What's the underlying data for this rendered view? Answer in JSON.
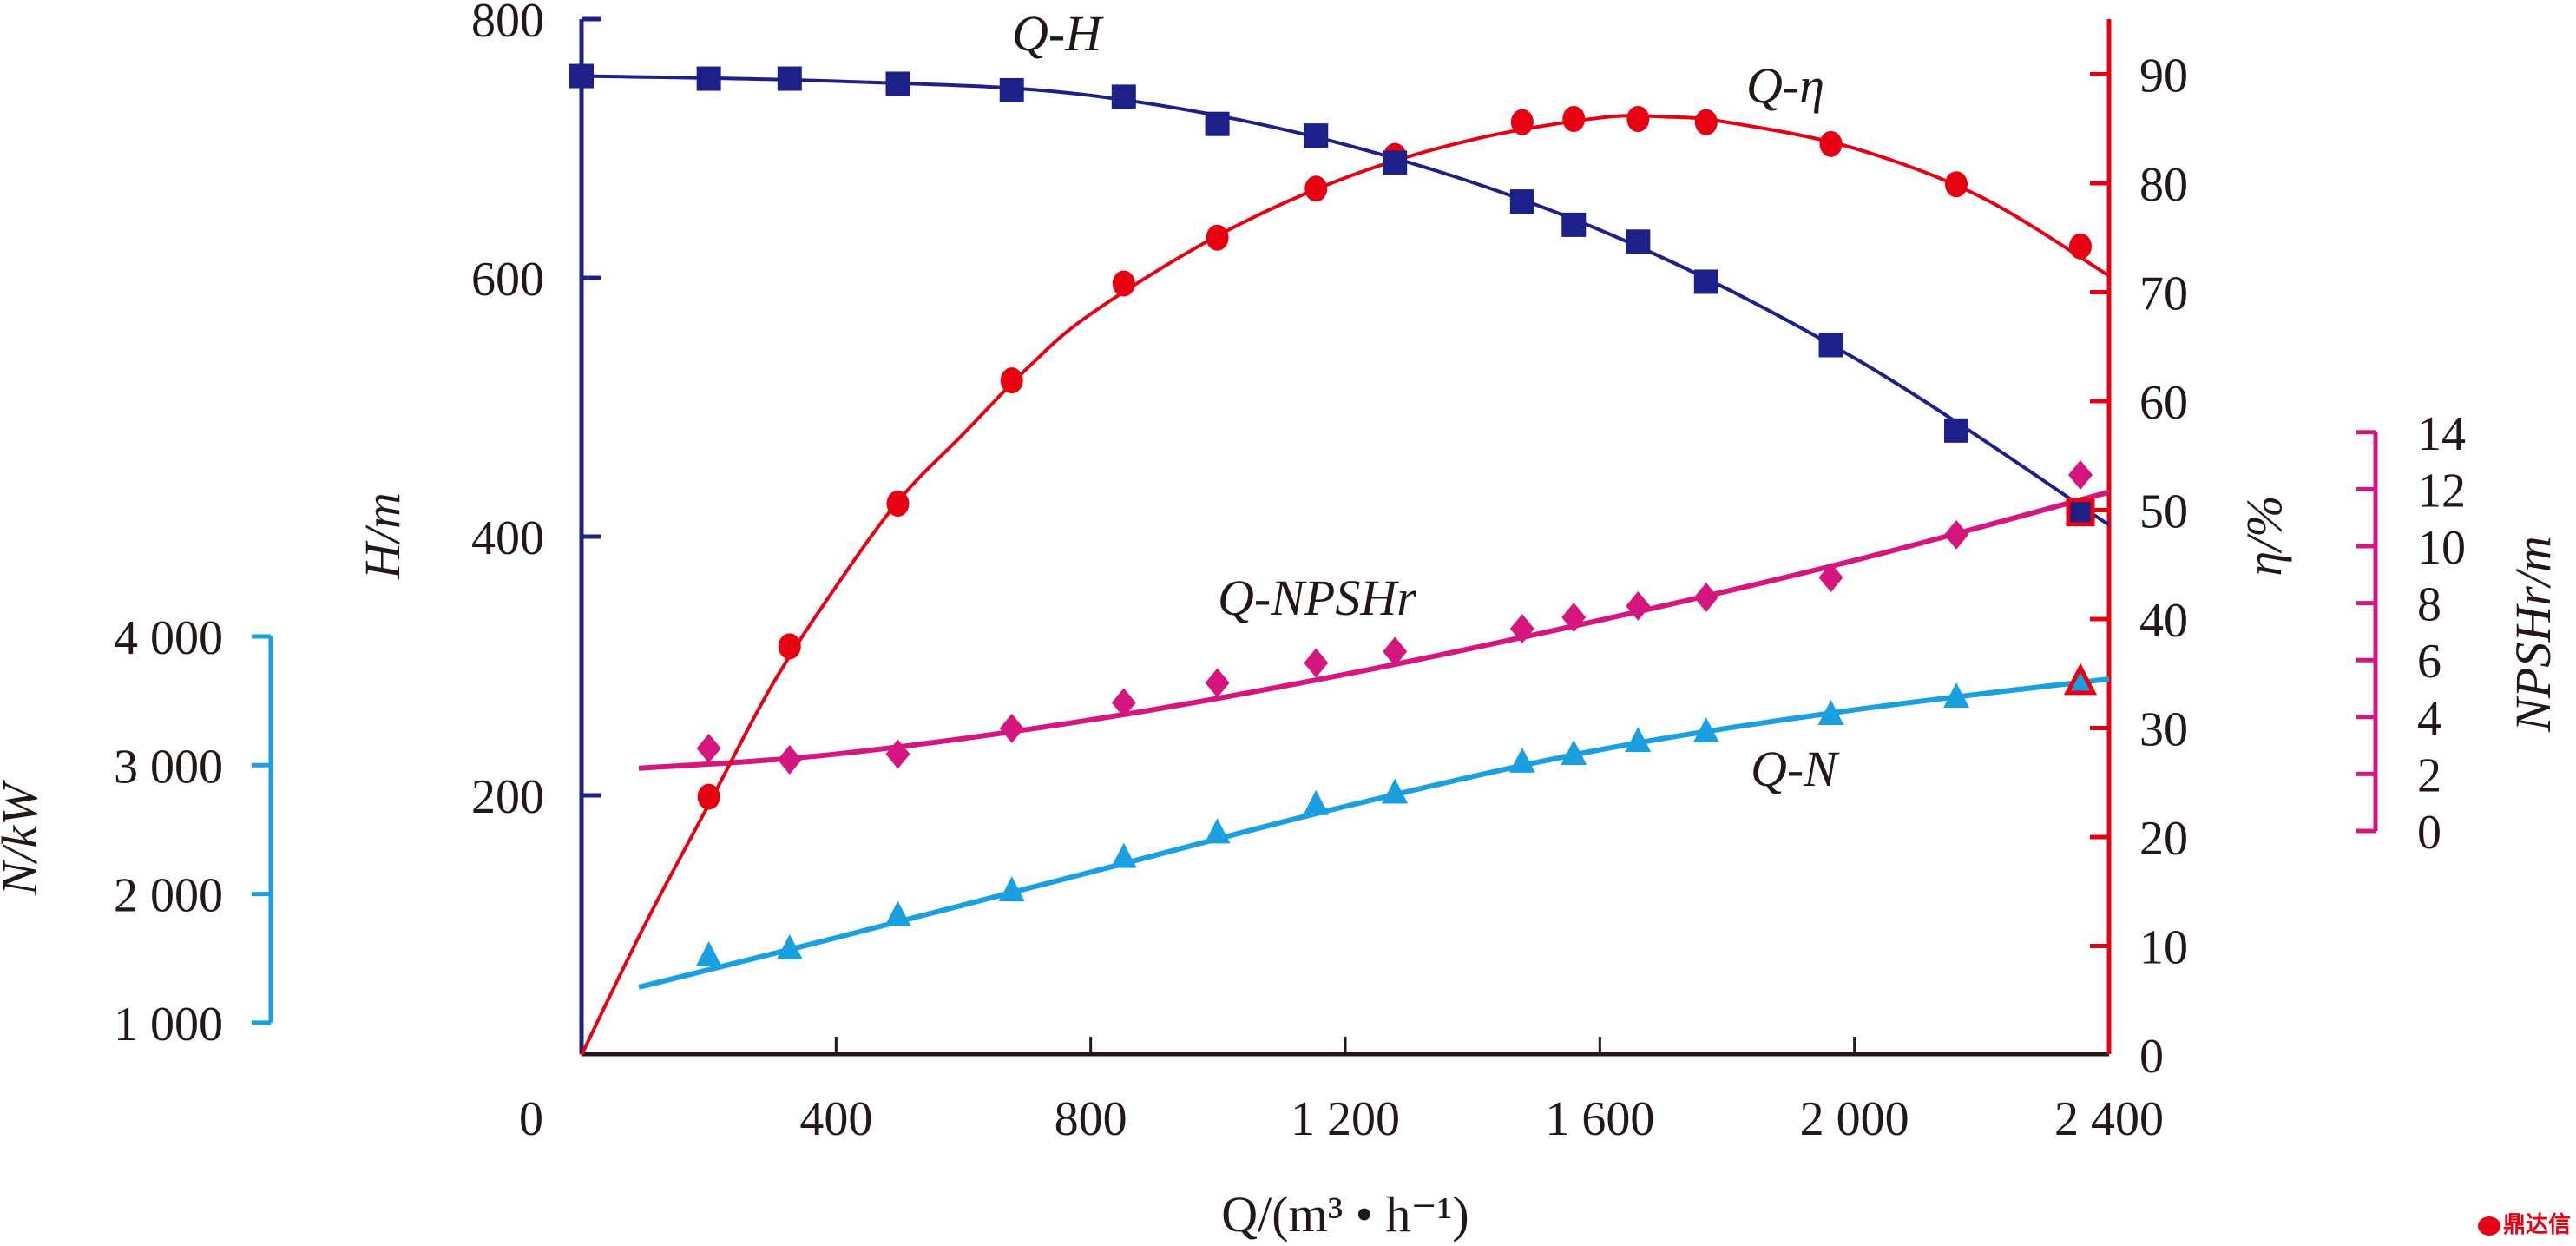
{
  "chart_data": {
    "type": "line",
    "title": "",
    "xlabel": "Q/(m³ • h⁻¹)",
    "x_axis": {
      "range": [
        0,
        2400
      ],
      "ticks": [
        0,
        400,
        800,
        1200,
        1600,
        2000,
        2400
      ],
      "tick_labels": [
        "0",
        "400",
        "800",
        "1 200",
        "1 600",
        "2 000",
        "2 400"
      ]
    },
    "axes": {
      "H": {
        "label": "H/m",
        "range": [
          0,
          800
        ],
        "ticks": [
          200,
          400,
          600,
          800
        ],
        "tick_labels": [
          "200",
          "400",
          "600",
          "800"
        ],
        "color": "#1d2088",
        "side": "left"
      },
      "N": {
        "label": "N/kW",
        "range": [
          1000,
          4000
        ],
        "ticks": [
          1000,
          2000,
          3000,
          4000
        ],
        "tick_labels": [
          "1 000",
          "2 000",
          "3 000",
          "4 000"
        ],
        "color": "#1aa0e0",
        "side": "far-left"
      },
      "eta": {
        "label": "η/%",
        "range": [
          0,
          95
        ],
        "ticks": [
          0,
          10,
          20,
          30,
          40,
          50,
          60,
          70,
          80,
          90
        ],
        "tick_labels": [
          "0",
          "10",
          "20",
          "30",
          "40",
          "50",
          "60",
          "70",
          "80",
          "90"
        ],
        "color": "#e60012",
        "side": "right"
      },
      "NPSHr": {
        "label": "NPSHr/m",
        "range": [
          0,
          14
        ],
        "ticks": [
          0,
          2,
          4,
          6,
          8,
          10,
          12,
          14
        ],
        "tick_labels": [
          "0",
          "2",
          "4",
          "6",
          "8",
          "10",
          "12",
          "14"
        ],
        "color": "#d6167f",
        "side": "far-right"
      }
    },
    "series": [
      {
        "name": "Q-H",
        "axis": "H",
        "marker": "square",
        "color": "#1d2088",
        "x": [
          0,
          200,
          327,
          497,
          676,
          852,
          999,
          1154,
          1278,
          1478,
          1559,
          1660,
          1767,
          1963,
          2160,
          2355
        ],
        "y": [
          756,
          754,
          754,
          750,
          745,
          740,
          719,
          710,
          689,
          659,
          641,
          628,
          597,
          548,
          482,
          419
        ],
        "fit_x": [
          0,
          400,
          800,
          1200,
          1600,
          2000,
          2400
        ],
        "fit_y": [
          756,
          752,
          741,
          703,
          637,
          538,
          409
        ]
      },
      {
        "name": "Q-η",
        "axis": "eta",
        "marker": "circle",
        "color": "#e60012",
        "x": [
          200,
          327,
          497,
          676,
          852,
          999,
          1154,
          1278,
          1478,
          1559,
          1660,
          1767,
          1963,
          2160,
          2355
        ],
        "y": [
          23.7,
          37.5,
          50.6,
          61.9,
          70.8,
          75.0,
          79.5,
          82.5,
          85.6,
          85.9,
          85.9,
          85.6,
          83.6,
          79.9,
          74.2
        ],
        "fit_x": [
          0,
          100,
          200,
          300,
          400,
          500,
          600,
          700,
          800,
          1000,
          1200,
          1400,
          1600,
          1700,
          1800,
          2000,
          2200,
          2400
        ],
        "fit_y": [
          0,
          12,
          23,
          34,
          43,
          51,
          57,
          63,
          68,
          75.2,
          80.5,
          84,
          86,
          86.1,
          85.6,
          83.2,
          78.7,
          71.5
        ]
      },
      {
        "name": "Q-NPSHr",
        "axis": "NPSHr",
        "marker": "diamond",
        "color": "#d6167f",
        "x": [
          200,
          327,
          497,
          676,
          852,
          999,
          1154,
          1278,
          1478,
          1559,
          1660,
          1767,
          1963,
          2160,
          2355
        ],
        "y": [
          2.9,
          2.5,
          2.7,
          3.6,
          4.5,
          5.2,
          5.9,
          6.3,
          7.1,
          7.5,
          7.9,
          8.2,
          8.9,
          10.4,
          12.5
        ],
        "fit_x": [
          90,
          400,
          800,
          1200,
          1600,
          2000,
          2400
        ],
        "fit_y": [
          2.2,
          2.7,
          3.9,
          5.5,
          7.4,
          9.5,
          11.9
        ]
      },
      {
        "name": "Q-N",
        "axis": "N",
        "marker": "triangle",
        "color": "#1aa0e0",
        "x": [
          200,
          327,
          497,
          676,
          852,
          999,
          1154,
          1278,
          1478,
          1559,
          1660,
          1767,
          1963,
          2160,
          2355
        ],
        "y": [
          1525,
          1580,
          1840,
          2030,
          2290,
          2480,
          2700,
          2790,
          3030,
          3090,
          3190,
          3265,
          3400,
          3535,
          3650
        ],
        "fit_x": [
          90,
          400,
          800,
          1200,
          1600,
          2000,
          2400
        ],
        "fit_y": [
          1276,
          1660,
          2170,
          2680,
          3120,
          3430,
          3670
        ]
      }
    ],
    "annotations": [
      {
        "text_italic": "Q",
        "text_upright": "-",
        "text_italic2": "H",
        "near_series": "Q-H"
      },
      {
        "text_italic": "Q",
        "text_upright": "-",
        "text_italic2": "η",
        "near_series": "Q-η"
      },
      {
        "text_italic": "Q",
        "text_upright": "-",
        "text_italic2": "NPSHr",
        "near_series": "Q-NPSHr"
      },
      {
        "text_italic": "Q",
        "text_upright": "-",
        "text_italic2": "N",
        "near_series": "Q-N"
      }
    ],
    "highlighted_points": [
      {
        "series": "Q-H",
        "x": 2355,
        "note": "red-outlined marker"
      },
      {
        "series": "Q-N",
        "x": 2355,
        "note": "red-outlined marker"
      }
    ],
    "grid": false,
    "legend": "none"
  },
  "watermark": "鼎达信"
}
